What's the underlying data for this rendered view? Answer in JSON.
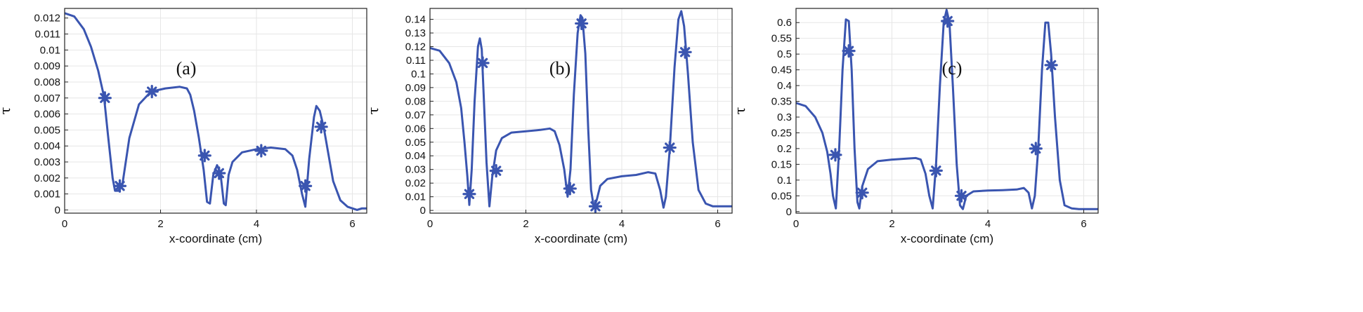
{
  "chart_data": [
    {
      "type": "line",
      "annotation": "(a)",
      "xlabel": "x-coordinate (cm)",
      "ylabel": "τ",
      "xlim": [
        0,
        6.3
      ],
      "ylim": [
        -0.0002,
        0.0126
      ],
      "xticks": [
        0,
        2,
        4,
        6
      ],
      "xtick_labels": [
        "0",
        "2",
        "4",
        "6"
      ],
      "yticks": [
        0,
        0.001,
        0.002,
        0.003,
        0.004,
        0.005,
        0.006,
        0.007,
        0.008,
        0.009,
        0.01,
        0.011,
        0.012
      ],
      "ytick_labels": [
        "0",
        "0.001",
        "0.002",
        "0.003",
        "0.004",
        "0.005",
        "0.006",
        "0.007",
        "0.008",
        "0.009",
        "0.01",
        "0.011",
        "0.012"
      ],
      "grid": true,
      "color": "#3a55b0",
      "x": [
        0,
        0.2,
        0.4,
        0.55,
        0.7,
        0.82,
        0.9,
        1.0,
        1.05,
        1.12,
        1.2,
        1.35,
        1.55,
        1.8,
        2.1,
        2.4,
        2.55,
        2.62,
        2.7,
        2.8,
        2.9,
        2.97,
        3.03,
        3.1,
        3.18,
        3.25,
        3.32,
        3.36,
        3.42,
        3.5,
        3.7,
        4.0,
        4.3,
        4.6,
        4.75,
        4.85,
        4.95,
        5.02,
        5.1,
        5.2,
        5.25,
        5.32,
        5.4,
        5.5,
        5.6,
        5.75,
        5.9,
        6.0,
        6.1,
        6.2,
        6.3
      ],
      "y": [
        0.0123,
        0.0121,
        0.0113,
        0.0102,
        0.0087,
        0.0071,
        0.0048,
        0.002,
        0.0012,
        0.0012,
        0.0015,
        0.0045,
        0.0066,
        0.0074,
        0.0076,
        0.0077,
        0.0076,
        0.0072,
        0.0062,
        0.0045,
        0.0025,
        0.0005,
        0.0004,
        0.0022,
        0.0028,
        0.0023,
        0.0004,
        0.0003,
        0.0022,
        0.003,
        0.0036,
        0.0038,
        0.0039,
        0.0038,
        0.0034,
        0.0025,
        0.001,
        0.0002,
        0.0032,
        0.0058,
        0.0065,
        0.0062,
        0.0052,
        0.0035,
        0.0018,
        0.0006,
        0.0002,
        0.0001,
        0.0,
        0.0001,
        0.0001
      ],
      "markers": {
        "x": [
          0.84,
          1.15,
          1.82,
          2.92,
          3.22,
          4.1,
          5.02,
          5.35
        ],
        "y": [
          0.007,
          0.0015,
          0.0074,
          0.0034,
          0.0023,
          0.0037,
          0.0015,
          0.0052
        ]
      }
    },
    {
      "type": "line",
      "annotation": "(b)",
      "xlabel": "x-coordinate (cm)",
      "ylabel": "τ",
      "xlim": [
        0,
        6.3
      ],
      "ylim": [
        -0.002,
        0.148
      ],
      "xticks": [
        0,
        2,
        4,
        6
      ],
      "xtick_labels": [
        "0",
        "2",
        "4",
        "6"
      ],
      "yticks": [
        0,
        0.01,
        0.02,
        0.03,
        0.04,
        0.05,
        0.06,
        0.07,
        0.08,
        0.09,
        0.1,
        0.11,
        0.12,
        0.13,
        0.14
      ],
      "ytick_labels": [
        "0",
        "0.01",
        "0.02",
        "0.03",
        "0.04",
        "0.05",
        "0.06",
        "0.07",
        "0.08",
        "0.09",
        "0.1",
        "0.11",
        "0.12",
        "0.13",
        "0.14"
      ],
      "grid": true,
      "color": "#3a55b0",
      "x": [
        0,
        0.2,
        0.4,
        0.55,
        0.65,
        0.72,
        0.78,
        0.82,
        0.87,
        0.93,
        1.0,
        1.04,
        1.08,
        1.12,
        1.18,
        1.24,
        1.3,
        1.38,
        1.5,
        1.7,
        2.0,
        2.3,
        2.5,
        2.6,
        2.7,
        2.8,
        2.87,
        2.93,
        3.0,
        3.08,
        3.14,
        3.18,
        3.24,
        3.3,
        3.36,
        3.42,
        3.48,
        3.55,
        3.7,
        4.0,
        4.3,
        4.55,
        4.7,
        4.8,
        4.87,
        4.92,
        5.0,
        5.1,
        5.18,
        5.24,
        5.3,
        5.38,
        5.48,
        5.6,
        5.75,
        5.9,
        6.0,
        6.1,
        6.3
      ],
      "y": [
        0.119,
        0.117,
        0.108,
        0.094,
        0.075,
        0.05,
        0.025,
        0.004,
        0.03,
        0.08,
        0.12,
        0.126,
        0.118,
        0.085,
        0.035,
        0.003,
        0.025,
        0.044,
        0.053,
        0.057,
        0.058,
        0.059,
        0.06,
        0.058,
        0.048,
        0.03,
        0.01,
        0.03,
        0.085,
        0.13,
        0.143,
        0.141,
        0.115,
        0.06,
        0.015,
        0.002,
        0.008,
        0.018,
        0.023,
        0.025,
        0.026,
        0.028,
        0.027,
        0.015,
        0.002,
        0.01,
        0.045,
        0.105,
        0.14,
        0.146,
        0.135,
        0.1,
        0.05,
        0.015,
        0.005,
        0.003,
        0.003,
        0.003,
        0.003
      ],
      "markers": {
        "x": [
          0.82,
          1.1,
          1.38,
          2.92,
          3.16,
          3.45,
          5.0,
          5.32
        ],
        "y": [
          0.012,
          0.108,
          0.029,
          0.016,
          0.137,
          0.003,
          0.046,
          0.116
        ]
      }
    },
    {
      "type": "line",
      "annotation": "(c)",
      "xlabel": "x-coordinate (cm)",
      "ylabel": "τ",
      "xlim": [
        0,
        6.3
      ],
      "ylim": [
        -0.005,
        0.645
      ],
      "xticks": [
        0,
        2,
        4,
        6
      ],
      "xtick_labels": [
        "0",
        "2",
        "4",
        "6"
      ],
      "yticks": [
        0,
        0.05,
        0.1,
        0.15,
        0.2,
        0.25,
        0.3,
        0.35,
        0.4,
        0.45,
        0.5,
        0.55,
        0.6
      ],
      "ytick_labels": [
        "0",
        "0.05",
        "0.1",
        "0.15",
        "0.2",
        "0.25",
        "0.3",
        "0.35",
        "0.4",
        "0.45",
        "0.5",
        "0.55",
        "0.6"
      ],
      "grid": true,
      "color": "#3a55b0",
      "x": [
        0,
        0.2,
        0.4,
        0.55,
        0.65,
        0.72,
        0.77,
        0.83,
        0.9,
        0.97,
        1.04,
        1.1,
        1.16,
        1.22,
        1.28,
        1.32,
        1.38,
        1.5,
        1.7,
        2.0,
        2.3,
        2.5,
        2.6,
        2.7,
        2.78,
        2.85,
        2.92,
        3.0,
        3.08,
        3.14,
        3.2,
        3.27,
        3.35,
        3.42,
        3.48,
        3.55,
        3.7,
        4.0,
        4.3,
        4.6,
        4.75,
        4.85,
        4.92,
        4.98,
        5.05,
        5.13,
        5.2,
        5.26,
        5.32,
        5.4,
        5.5,
        5.6,
        5.75,
        5.9,
        6.1,
        6.3
      ],
      "y": [
        0.345,
        0.335,
        0.3,
        0.25,
        0.19,
        0.12,
        0.05,
        0.01,
        0.2,
        0.45,
        0.61,
        0.605,
        0.45,
        0.2,
        0.03,
        0.01,
        0.08,
        0.135,
        0.16,
        0.165,
        0.168,
        0.17,
        0.165,
        0.12,
        0.05,
        0.01,
        0.15,
        0.4,
        0.6,
        0.64,
        0.6,
        0.4,
        0.15,
        0.02,
        0.008,
        0.05,
        0.064,
        0.067,
        0.068,
        0.07,
        0.075,
        0.06,
        0.01,
        0.05,
        0.2,
        0.45,
        0.6,
        0.6,
        0.5,
        0.3,
        0.1,
        0.02,
        0.01,
        0.008,
        0.008,
        0.008
      ],
      "markers": {
        "x": [
          0.82,
          1.1,
          1.38,
          2.92,
          3.16,
          3.45,
          5.0,
          5.32
        ],
        "y": [
          0.18,
          0.51,
          0.06,
          0.13,
          0.605,
          0.05,
          0.2,
          0.465
        ]
      }
    }
  ]
}
